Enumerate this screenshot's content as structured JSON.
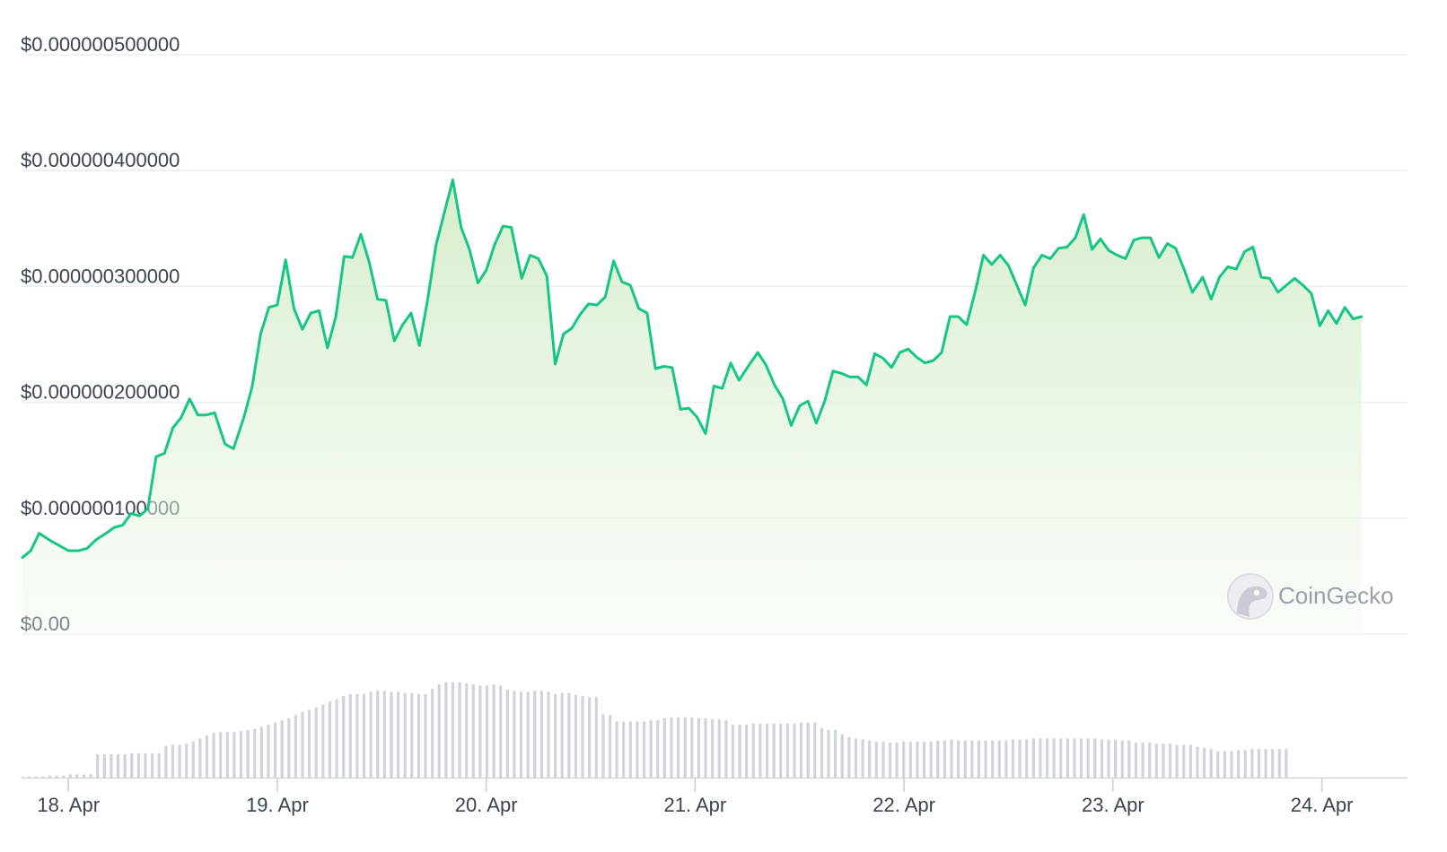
{
  "chart_data": {
    "type": "line",
    "title": "",
    "xlabel": "",
    "ylabel": "",
    "ylim": [
      0,
      5e-07
    ],
    "ytick_labels": [
      "$0.00",
      "$0.000000100000",
      "$0.000000200000",
      "$0.000000300000",
      "$0.000000400000",
      "$0.000000500000"
    ],
    "ytick_values": [
      0,
      1e-07,
      2e-07,
      3e-07,
      4e-07,
      5e-07
    ],
    "xtick_labels": [
      "18. Apr",
      "19. Apr",
      "20. Apr",
      "21. Apr",
      "22. Apr",
      "23. Apr",
      "24. Apr"
    ],
    "xtick_values": [
      0,
      1,
      2,
      3,
      4,
      5,
      6
    ],
    "xlim": [
      -0.22,
      6.41
    ],
    "grid": true,
    "line_color": "#16c784",
    "fill_color": "#d6edcc",
    "volume_color": "#cfd3dc",
    "watermark": "CoinGecko",
    "series": [
      {
        "values": [
          [
            -0.22,
            0.066
          ],
          [
            -0.18,
            0.072
          ],
          [
            -0.14,
            0.087
          ],
          [
            -0.09,
            0.081
          ],
          [
            -0.04,
            0.076
          ],
          [
            0.0,
            0.072
          ],
          [
            0.05,
            0.072
          ],
          [
            0.09,
            0.074
          ],
          [
            0.13,
            0.081
          ],
          [
            0.18,
            0.087
          ],
          [
            0.22,
            0.092
          ],
          [
            0.26,
            0.094
          ],
          [
            0.3,
            0.104
          ],
          [
            0.34,
            0.102
          ],
          [
            0.38,
            0.108
          ],
          [
            0.42,
            0.153
          ],
          [
            0.46,
            0.156
          ],
          [
            0.5,
            0.178
          ],
          [
            0.54,
            0.187
          ],
          [
            0.58,
            0.203
          ],
          [
            0.62,
            0.189
          ],
          [
            0.66,
            0.189
          ],
          [
            0.7,
            0.191
          ],
          [
            0.75,
            0.164
          ],
          [
            0.79,
            0.16
          ],
          [
            0.84,
            0.187
          ],
          [
            0.88,
            0.214
          ],
          [
            0.92,
            0.259
          ],
          [
            0.96,
            0.282
          ],
          [
            1.0,
            0.284
          ],
          [
            1.04,
            0.323
          ],
          [
            1.08,
            0.281
          ],
          [
            1.12,
            0.263
          ],
          [
            1.16,
            0.277
          ],
          [
            1.2,
            0.279
          ],
          [
            1.24,
            0.247
          ],
          [
            1.28,
            0.274
          ],
          [
            1.32,
            0.326
          ],
          [
            1.36,
            0.325
          ],
          [
            1.4,
            0.345
          ],
          [
            1.44,
            0.321
          ],
          [
            1.48,
            0.289
          ],
          [
            1.52,
            0.288
          ],
          [
            1.56,
            0.253
          ],
          [
            1.6,
            0.267
          ],
          [
            1.64,
            0.277
          ],
          [
            1.68,
            0.249
          ],
          [
            1.72,
            0.289
          ],
          [
            1.76,
            0.336
          ],
          [
            1.8,
            0.364
          ],
          [
            1.84,
            0.392
          ],
          [
            1.88,
            0.351
          ],
          [
            1.92,
            0.332
          ],
          [
            1.96,
            0.303
          ],
          [
            2.0,
            0.314
          ],
          [
            2.04,
            0.336
          ],
          [
            2.08,
            0.352
          ],
          [
            2.12,
            0.351
          ],
          [
            2.17,
            0.307
          ],
          [
            2.21,
            0.327
          ],
          [
            2.25,
            0.324
          ],
          [
            2.29,
            0.309
          ],
          [
            2.33,
            0.233
          ],
          [
            2.37,
            0.259
          ],
          [
            2.41,
            0.264
          ],
          [
            2.45,
            0.276
          ],
          [
            2.49,
            0.285
          ],
          [
            2.53,
            0.284
          ],
          [
            2.57,
            0.291
          ],
          [
            2.61,
            0.322
          ],
          [
            2.65,
            0.304
          ],
          [
            2.69,
            0.301
          ],
          [
            2.73,
            0.281
          ],
          [
            2.77,
            0.277
          ],
          [
            2.81,
            0.229
          ],
          [
            2.85,
            0.231
          ],
          [
            2.89,
            0.23
          ],
          [
            2.93,
            0.194
          ],
          [
            2.97,
            0.195
          ],
          [
            3.01,
            0.187
          ],
          [
            3.05,
            0.173
          ],
          [
            3.09,
            0.214
          ],
          [
            3.13,
            0.212
          ],
          [
            3.17,
            0.234
          ],
          [
            3.21,
            0.219
          ],
          [
            3.25,
            0.23
          ],
          [
            3.3,
            0.243
          ],
          [
            3.34,
            0.232
          ],
          [
            3.38,
            0.215
          ],
          [
            3.42,
            0.203
          ],
          [
            3.46,
            0.18
          ],
          [
            3.5,
            0.197
          ],
          [
            3.54,
            0.201
          ],
          [
            3.58,
            0.182
          ],
          [
            3.62,
            0.201
          ],
          [
            3.66,
            0.227
          ],
          [
            3.7,
            0.225
          ],
          [
            3.74,
            0.222
          ],
          [
            3.78,
            0.222
          ],
          [
            3.82,
            0.215
          ],
          [
            3.86,
            0.242
          ],
          [
            3.9,
            0.238
          ],
          [
            3.94,
            0.23
          ],
          [
            3.98,
            0.243
          ],
          [
            4.02,
            0.246
          ],
          [
            4.06,
            0.239
          ],
          [
            4.1,
            0.234
          ],
          [
            4.14,
            0.236
          ],
          [
            4.18,
            0.243
          ],
          [
            4.22,
            0.274
          ],
          [
            4.26,
            0.274
          ],
          [
            4.3,
            0.267
          ],
          [
            4.34,
            0.295
          ],
          [
            4.38,
            0.327
          ],
          [
            4.42,
            0.319
          ],
          [
            4.46,
            0.327
          ],
          [
            4.5,
            0.318
          ],
          [
            4.54,
            0.301
          ],
          [
            4.58,
            0.284
          ],
          [
            4.62,
            0.316
          ],
          [
            4.66,
            0.327
          ],
          [
            4.7,
            0.324
          ],
          [
            4.74,
            0.333
          ],
          [
            4.78,
            0.334
          ],
          [
            4.82,
            0.342
          ],
          [
            4.86,
            0.362
          ],
          [
            4.9,
            0.332
          ],
          [
            4.94,
            0.341
          ],
          [
            4.98,
            0.331
          ],
          [
            5.02,
            0.327
          ],
          [
            5.06,
            0.324
          ],
          [
            5.1,
            0.34
          ],
          [
            5.14,
            0.342
          ],
          [
            5.18,
            0.342
          ],
          [
            5.22,
            0.325
          ],
          [
            5.26,
            0.337
          ],
          [
            5.3,
            0.333
          ],
          [
            5.34,
            0.315
          ],
          [
            5.38,
            0.295
          ],
          [
            5.43,
            0.308
          ],
          [
            5.47,
            0.289
          ],
          [
            5.51,
            0.308
          ],
          [
            5.55,
            0.317
          ],
          [
            5.59,
            0.315
          ],
          [
            5.63,
            0.33
          ],
          [
            5.67,
            0.334
          ],
          [
            5.71,
            0.308
          ],
          [
            5.75,
            0.307
          ],
          [
            5.79,
            0.295
          ],
          [
            5.83,
            0.301
          ],
          [
            5.87,
            0.307
          ],
          [
            5.91,
            0.301
          ],
          [
            5.95,
            0.294
          ],
          [
            5.99,
            0.266
          ],
          [
            6.03,
            0.279
          ],
          [
            6.07,
            0.268
          ],
          [
            6.11,
            0.282
          ],
          [
            6.15,
            0.272
          ],
          [
            6.19,
            0.274
          ]
        ]
      }
    ],
    "volume": {
      "x_start": -0.22,
      "x_step": 0.0327,
      "max": 1.0,
      "values": [
        0.01,
        0.01,
        0.01,
        0.01,
        0.02,
        0.02,
        0.02,
        0.03,
        0.03,
        0.03,
        0.03,
        0.22,
        0.22,
        0.22,
        0.22,
        0.22,
        0.23,
        0.23,
        0.23,
        0.23,
        0.23,
        0.3,
        0.31,
        0.31,
        0.32,
        0.34,
        0.37,
        0.4,
        0.42,
        0.43,
        0.43,
        0.43,
        0.44,
        0.45,
        0.46,
        0.48,
        0.5,
        0.52,
        0.54,
        0.56,
        0.59,
        0.62,
        0.64,
        0.66,
        0.69,
        0.72,
        0.74,
        0.77,
        0.79,
        0.79,
        0.79,
        0.81,
        0.82,
        0.82,
        0.81,
        0.81,
        0.8,
        0.8,
        0.79,
        0.79,
        0.84,
        0.88,
        0.9,
        0.9,
        0.9,
        0.89,
        0.88,
        0.87,
        0.87,
        0.88,
        0.87,
        0.83,
        0.82,
        0.81,
        0.81,
        0.82,
        0.82,
        0.81,
        0.79,
        0.8,
        0.8,
        0.78,
        0.77,
        0.76,
        0.76,
        0.6,
        0.59,
        0.53,
        0.53,
        0.53,
        0.53,
        0.53,
        0.54,
        0.54,
        0.56,
        0.57,
        0.57,
        0.57,
        0.57,
        0.56,
        0.56,
        0.55,
        0.55,
        0.54,
        0.5,
        0.5,
        0.5,
        0.51,
        0.51,
        0.51,
        0.51,
        0.51,
        0.51,
        0.51,
        0.52,
        0.52,
        0.52,
        0.47,
        0.45,
        0.45,
        0.41,
        0.38,
        0.37,
        0.36,
        0.35,
        0.34,
        0.34,
        0.33,
        0.33,
        0.34,
        0.34,
        0.34,
        0.34,
        0.34,
        0.35,
        0.35,
        0.36,
        0.35,
        0.35,
        0.35,
        0.35,
        0.35,
        0.35,
        0.35,
        0.35,
        0.36,
        0.36,
        0.36,
        0.37,
        0.37,
        0.37,
        0.37,
        0.37,
        0.37,
        0.37,
        0.37,
        0.37,
        0.37,
        0.36,
        0.36,
        0.36,
        0.35,
        0.35,
        0.33,
        0.33,
        0.33,
        0.32,
        0.32,
        0.32,
        0.31,
        0.31,
        0.31,
        0.29,
        0.28,
        0.27,
        0.25,
        0.25,
        0.25,
        0.26,
        0.26,
        0.27,
        0.27,
        0.27,
        0.27,
        0.27,
        0.27
      ]
    }
  }
}
